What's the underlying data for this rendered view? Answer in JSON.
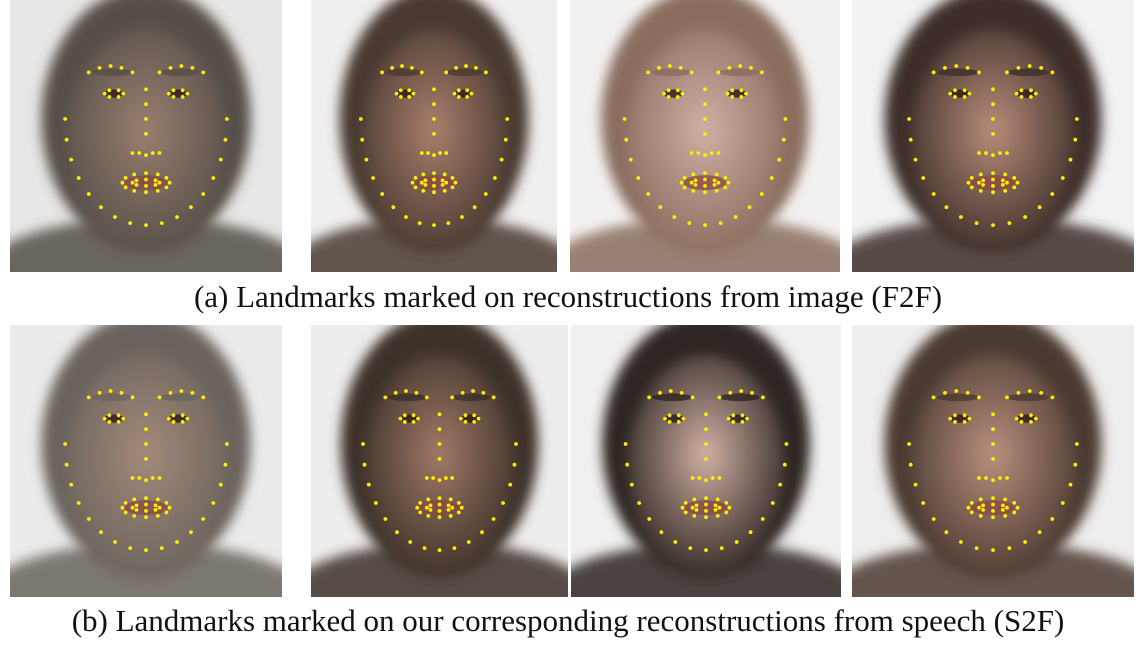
{
  "figure": {
    "rows": [
      {
        "id": "a",
        "caption": "(a) Landmarks marked on reconstructions from image (F2F)",
        "faces": [
          {
            "hair_color": "#565049",
            "skin_color": "#9a7f70",
            "bg_color": "#e8e6e4"
          },
          {
            "hair_color": "#4a3a31",
            "skin_color": "#a9806e",
            "bg_color": "#f1efee"
          },
          {
            "hair_color": "#8a6d5f",
            "skin_color": "#cfb1a6",
            "bg_color": "#f3f1f0"
          },
          {
            "hair_color": "#3d2f29",
            "skin_color": "#b98e7b",
            "bg_color": "#f2f2f2"
          }
        ]
      },
      {
        "id": "b",
        "caption": "(b) Landmarks marked on our corresponding reconstructions from speech (S2F)",
        "faces": [
          {
            "hair_color": "#6b645d",
            "skin_color": "#a48a7b",
            "bg_color": "#ecebea"
          },
          {
            "hair_color": "#3c3029",
            "skin_color": "#a27b69",
            "bg_color": "#efedec"
          },
          {
            "hair_color": "#2f2623",
            "skin_color": "#d2b2a6",
            "bg_color": "#f2f0ef"
          },
          {
            "hair_color": "#4b3a31",
            "skin_color": "#bb917f",
            "bg_color": "#f0eeed"
          }
        ]
      }
    ],
    "landmark_color": "#ffee00"
  }
}
